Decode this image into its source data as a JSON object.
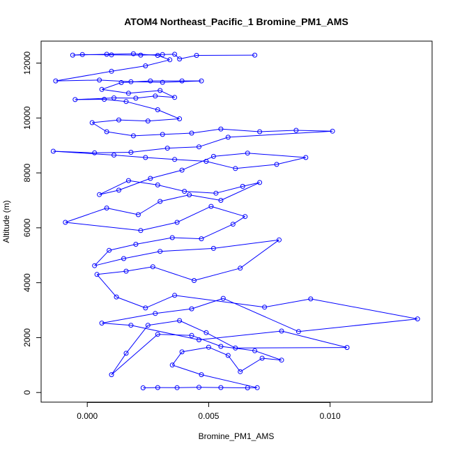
{
  "chart_data": {
    "type": "line",
    "title": "ATOM4 Northeast_Pacific_1 Bromine_PM1_AMS",
    "xlabel": "Bromine_PM1_AMS",
    "ylabel": "Altitude (m)",
    "xlim": [
      -0.0019,
      0.0142
    ],
    "ylim": [
      -350,
      12800
    ],
    "xticks": [
      0.0,
      0.005,
      0.01
    ],
    "xtick_labels": [
      "0.000",
      "0.005",
      "0.010"
    ],
    "yticks": [
      0,
      2000,
      4000,
      6000,
      8000,
      10000,
      12000
    ],
    "ytick_labels": [
      "0",
      "2000",
      "4000",
      "6000",
      "8000",
      "10000",
      "12000"
    ],
    "grid": false,
    "legend": "none",
    "series_color": "#0000ff",
    "marker": "open-circle",
    "series": [
      {
        "x": [
          0.0023,
          0.0029,
          0.0037,
          0.0046,
          0.0055,
          0.0066,
          0.007,
          0.0047,
          0.0035,
          0.0039,
          0.005,
          0.0058,
          0.0063,
          0.0072,
          0.008,
          0.0069,
          0.0055,
          0.0043,
          0.0029,
          0.001,
          0.0016,
          0.0025,
          0.0038,
          0.0049,
          0.0061,
          0.0107,
          0.008,
          0.0046,
          0.0018,
          0.0006,
          0.0028,
          0.0043,
          0.0056,
          0.0087,
          0.0136,
          0.0092,
          0.0073,
          0.0036,
          0.0024,
          0.0012,
          0.0004,
          0.0016,
          0.0027,
          0.0044,
          0.0063,
          0.0079,
          0.0052,
          0.003,
          0.0015,
          0.0003,
          0.0009,
          0.002,
          0.0035,
          0.0047,
          0.006,
          0.0065,
          0.0051,
          0.0037,
          0.0022,
          -0.0009,
          0.0008,
          0.0021,
          0.003,
          0.0042,
          0.0055,
          0.0071,
          0.0064,
          0.0053,
          0.004,
          0.0029,
          0.0017,
          0.0005,
          0.0013,
          0.0026,
          0.0039,
          0.0052,
          0.0066,
          0.009,
          0.0078,
          0.0061,
          0.0049,
          0.0036,
          0.0024,
          0.0011,
          -0.0014,
          0.0003,
          0.0018,
          0.0033,
          0.0046,
          0.0058,
          0.0101,
          0.0086,
          0.0071,
          0.0055,
          0.0043,
          0.0031,
          0.0019,
          0.0008,
          0.0002,
          0.0013,
          0.0025,
          0.0038,
          0.0029,
          0.0016,
          0.0007,
          -0.0005,
          0.0011,
          0.002,
          0.0028,
          0.0036,
          0.003,
          0.0017,
          0.0006,
          0.0014,
          0.0026,
          0.0039,
          0.0047,
          0.0031,
          0.0018,
          0.0005,
          -0.0013,
          0.001,
          0.0024,
          0.0034,
          0.0029,
          0.0019,
          0.0008,
          -0.0006,
          -0.0002,
          0.001,
          0.0022,
          0.0031,
          0.0036,
          0.0038,
          0.0045,
          0.0069
        ],
        "y": [
          170,
          180,
          175,
          190,
          180,
          170,
          175,
          650,
          1000,
          1480,
          1650,
          1350,
          760,
          1250,
          1180,
          1520,
          1680,
          2080,
          2120,
          650,
          1430,
          2450,
          2620,
          2180,
          1620,
          1640,
          2240,
          1920,
          2450,
          2530,
          2880,
          3050,
          3430,
          2220,
          2680,
          3410,
          3110,
          3540,
          3080,
          3480,
          4300,
          4420,
          4580,
          4080,
          4530,
          5560,
          5250,
          5140,
          4880,
          4620,
          5180,
          5400,
          5640,
          5600,
          6130,
          6410,
          6780,
          6200,
          5900,
          6200,
          6720,
          6480,
          6960,
          7200,
          7000,
          7650,
          7510,
          7260,
          7330,
          7560,
          7720,
          7210,
          7370,
          7800,
          8100,
          8600,
          8720,
          8560,
          8310,
          8160,
          8420,
          8490,
          8560,
          8650,
          8790,
          8730,
          8750,
          8900,
          8950,
          9300,
          9520,
          9550,
          9500,
          9600,
          9450,
          9400,
          9350,
          9500,
          9830,
          9930,
          9890,
          9970,
          10300,
          10600,
          10680,
          10670,
          10730,
          10720,
          10800,
          10750,
          11000,
          10900,
          11040,
          11290,
          11350,
          11350,
          11350,
          11300,
          11320,
          11380,
          11350,
          11700,
          11900,
          12120,
          12280,
          12340,
          12320,
          12290,
          12310,
          12300,
          12290,
          12310,
          12320,
          12150,
          12280,
          12290
        ]
      }
    ]
  }
}
